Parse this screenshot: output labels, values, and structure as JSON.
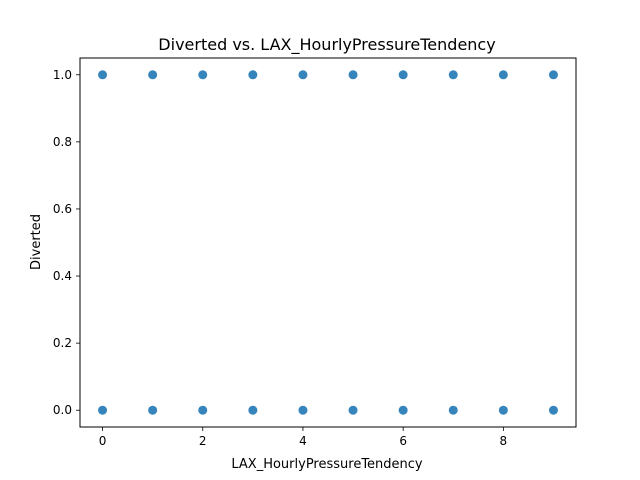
{
  "chart_data": {
    "type": "scatter",
    "title": "Diverted vs. LAX_HourlyPressureTendency",
    "xlabel": "LAX_HourlyPressureTendency",
    "ylabel": "Diverted",
    "xlim": [
      -0.45,
      9.45
    ],
    "ylim": [
      -0.05,
      1.05
    ],
    "xticks": [
      0,
      2,
      4,
      6,
      8
    ],
    "xtick_labels": [
      "0",
      "2",
      "4",
      "6",
      "8"
    ],
    "yticks": [
      0.0,
      0.2,
      0.4,
      0.6,
      0.8,
      1.0
    ],
    "ytick_labels": [
      "0.0",
      "0.2",
      "0.4",
      "0.6",
      "0.8",
      "1.0"
    ],
    "grid": false,
    "marker_color": "#1f77b4",
    "series": [
      {
        "points": [
          [
            0,
            1
          ],
          [
            1,
            1
          ],
          [
            2,
            1
          ],
          [
            3,
            1
          ],
          [
            4,
            1
          ],
          [
            5,
            1
          ],
          [
            6,
            1
          ],
          [
            7,
            1
          ],
          [
            8,
            1
          ],
          [
            9,
            1
          ],
          [
            0,
            0
          ],
          [
            1,
            0
          ],
          [
            2,
            0
          ],
          [
            3,
            0
          ],
          [
            4,
            0
          ],
          [
            5,
            0
          ],
          [
            6,
            0
          ],
          [
            7,
            0
          ],
          [
            8,
            0
          ],
          [
            9,
            0
          ]
        ]
      }
    ]
  }
}
